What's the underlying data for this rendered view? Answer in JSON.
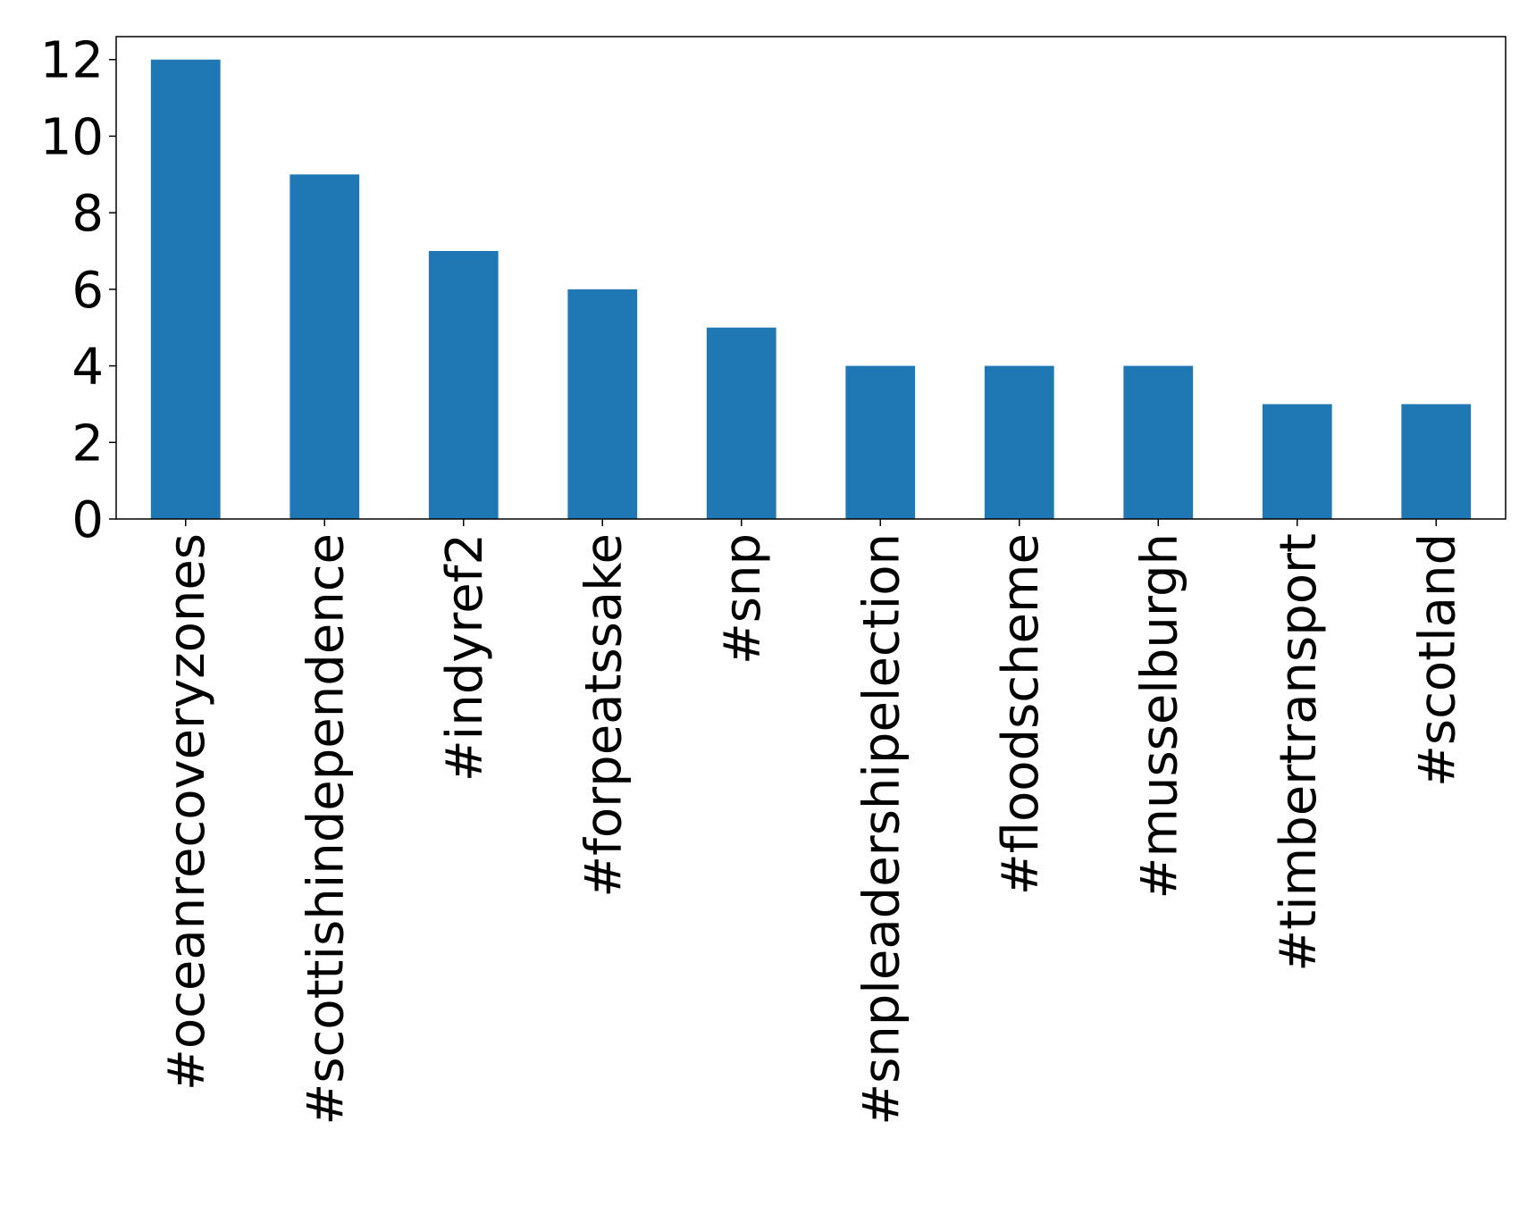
{
  "chart_data": {
    "type": "bar",
    "title": "",
    "xlabel": "",
    "ylabel": "",
    "categories": [
      "#oceanrecoveryzones",
      "#scottishindependence",
      "#indyref2",
      "#forpeatssake",
      "#snp",
      "#snpleadershipelection",
      "#floodscheme",
      "#musselburgh",
      "#timbertransport",
      "#scotland"
    ],
    "values": [
      12,
      9,
      7,
      6,
      5,
      4,
      4,
      4,
      3,
      3
    ],
    "ylim": [
      0,
      12.6
    ],
    "yticks": [
      0,
      2,
      4,
      6,
      8,
      10,
      12
    ],
    "grid": false,
    "legend": "none",
    "bar_color": "#1f77b4"
  }
}
